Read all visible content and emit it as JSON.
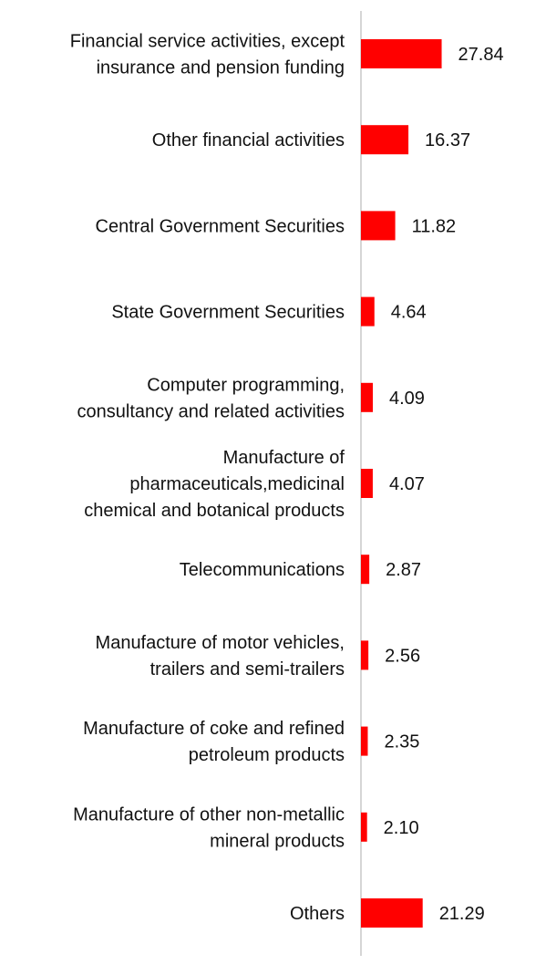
{
  "chart_data": {
    "type": "bar",
    "orientation": "horizontal",
    "categories": [
      [
        "Financial service activities, except",
        "insurance and pension funding"
      ],
      [
        "Other financial activities"
      ],
      [
        "Central Government Securities"
      ],
      [
        "State Government Securities"
      ],
      [
        "Computer programming,",
        "consultancy and related activities"
      ],
      [
        "Manufacture of",
        "pharmaceuticals,medicinal",
        "chemical and botanical products"
      ],
      [
        "Telecommunications"
      ],
      [
        "Manufacture of motor vehicles,",
        "trailers and semi-trailers"
      ],
      [
        "Manufacture of coke and refined",
        "petroleum products"
      ],
      [
        "Manufacture of other non-metallic",
        "mineral products"
      ],
      [
        "Others"
      ]
    ],
    "values": [
      27.84,
      16.37,
      11.82,
      4.64,
      4.09,
      4.07,
      2.87,
      2.56,
      2.35,
      2.1,
      21.29
    ],
    "value_labels": [
      "27.84",
      "16.37",
      "11.82",
      "4.64",
      "4.09",
      "4.07",
      "2.87",
      "2.56",
      "2.35",
      "2.10",
      "21.29"
    ],
    "bar_color": "#ff0000",
    "axis_color": "#c8c8c8",
    "grid": false,
    "legend": "none",
    "title": "",
    "xlabel": "",
    "ylabel": ""
  }
}
